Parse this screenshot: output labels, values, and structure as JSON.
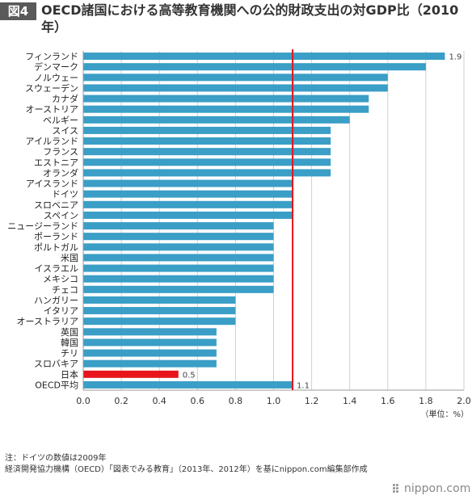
{
  "figure_label": "図4",
  "title": "OECD諸国における高等教育機関への公的財政支出の対GDP比（2010年）",
  "notes": {
    "note": "注：ドイツの数値は2009年",
    "source": "経済開発協力機構（OECD）「図表でみる教育」（2013年、2012年）を基にnippon.com編集部作成"
  },
  "logo_text": "nippon.com",
  "chart_data": {
    "type": "bar",
    "orientation": "horizontal",
    "categories": [
      "フィンランド",
      "デンマーク",
      "ノルウェー",
      "スウェーデン",
      "カナダ",
      "オーストリア",
      "ベルギー",
      "スイス",
      "アイルランド",
      "フランス",
      "エストニア",
      "オランダ",
      "アイスランド",
      "ドイツ",
      "スロベニア",
      "スペイン",
      "ニュージーランド",
      "ポーランド",
      "ポルトガル",
      "米国",
      "イスラエル",
      "メキシコ",
      "チェコ",
      "ハンガリー",
      "イタリア",
      "オーストラリア",
      "英国",
      "韓国",
      "チリ",
      "スロバキア",
      "日本",
      "OECD平均"
    ],
    "values": [
      1.9,
      1.8,
      1.6,
      1.6,
      1.5,
      1.5,
      1.4,
      1.3,
      1.3,
      1.3,
      1.3,
      1.3,
      1.1,
      1.1,
      1.1,
      1.1,
      1.0,
      1.0,
      1.0,
      1.0,
      1.0,
      1.0,
      1.0,
      0.8,
      0.8,
      0.8,
      0.7,
      0.7,
      0.7,
      0.7,
      0.5,
      1.1
    ],
    "data_labels": {
      "フィンランド": "1.9",
      "日本": "0.5",
      "OECD平均": "1.1"
    },
    "highlight": "日本",
    "reference_line": 1.1,
    "xlim": [
      0.0,
      2.0
    ],
    "xticks": [
      "0.0",
      "0.2",
      "0.4",
      "0.6",
      "0.8",
      "1.0",
      "1.2",
      "1.4",
      "1.6",
      "1.8",
      "2.0"
    ],
    "unit_label": "（単位：%）",
    "grid": true,
    "colors": {
      "bar": "#3a9ec6",
      "highlight": "#e8141b",
      "reference_line": "#e8141b",
      "grid": "#cfcfcf",
      "axis": "#999999"
    }
  }
}
